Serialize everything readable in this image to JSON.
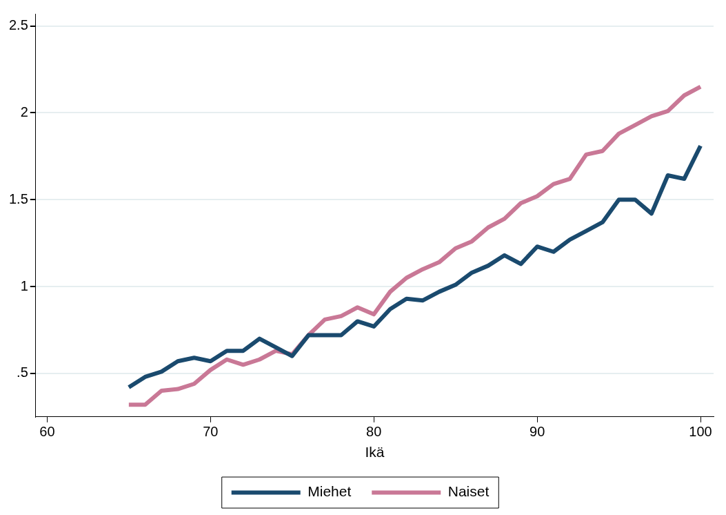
{
  "chart_data": {
    "type": "line",
    "xlabel": "Ikä",
    "x": [
      65,
      66,
      67,
      68,
      69,
      70,
      71,
      72,
      73,
      74,
      75,
      76,
      77,
      78,
      79,
      80,
      81,
      82,
      83,
      84,
      85,
      86,
      87,
      88,
      89,
      90,
      91,
      92,
      93,
      94,
      95,
      96,
      97,
      98,
      99,
      100
    ],
    "series": [
      {
        "name": "Miehet",
        "color": "#1a4a6e",
        "values": [
          0.42,
          0.48,
          0.51,
          0.57,
          0.59,
          0.57,
          0.63,
          0.63,
          0.7,
          0.65,
          0.6,
          0.72,
          0.72,
          0.72,
          0.8,
          0.77,
          0.87,
          0.93,
          0.92,
          0.97,
          1.01,
          1.08,
          1.12,
          1.18,
          1.13,
          1.23,
          1.2,
          1.27,
          1.32,
          1.37,
          1.5,
          1.5,
          1.42,
          1.64,
          1.62,
          1.81
        ]
      },
      {
        "name": "Naiset",
        "color": "#c97896",
        "values": [
          0.32,
          0.32,
          0.4,
          0.41,
          0.44,
          0.52,
          0.58,
          0.55,
          0.58,
          0.63,
          0.61,
          0.72,
          0.81,
          0.83,
          0.88,
          0.84,
          0.97,
          1.05,
          1.1,
          1.14,
          1.22,
          1.26,
          1.34,
          1.39,
          1.48,
          1.52,
          1.59,
          1.62,
          1.76,
          1.78,
          1.88,
          1.93,
          1.98,
          2.01,
          2.1,
          2.15
        ]
      }
    ],
    "xlim": [
      59.3,
      100.8
    ],
    "xticks": [
      60,
      70,
      80,
      90,
      100
    ],
    "ylim": [
      0.25,
      2.57
    ],
    "yticks": [
      {
        "value": 0.5,
        "label": ".5"
      },
      1,
      1.5,
      2,
      2.5
    ],
    "grid": "y",
    "legend": "bottom",
    "marker": "none",
    "line_style": "solid"
  }
}
